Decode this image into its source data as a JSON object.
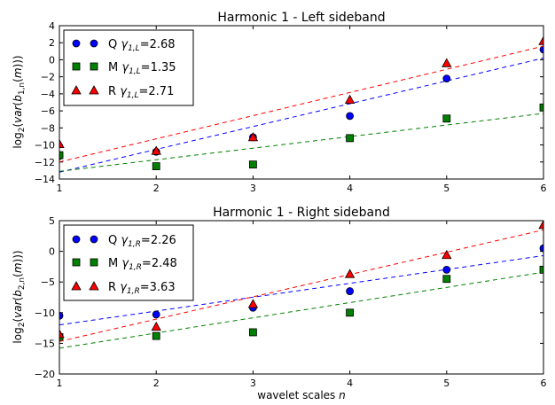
{
  "figure": {
    "xlabel": "wavelet scales n"
  },
  "chart_data": [
    {
      "type": "scatter",
      "title": "Harmonic 1 - Left sideband",
      "xlabel": "",
      "ylabel": "log2(var(b1,n(m)))",
      "xlim": [
        1,
        6
      ],
      "ylim": [
        -14,
        4
      ],
      "x_ticks": [
        1,
        2,
        3,
        4,
        5,
        6
      ],
      "y_ticks": [
        -14,
        -12,
        -10,
        -8,
        -6,
        -4,
        -2,
        0,
        2,
        4
      ],
      "legend_position": "top-left",
      "x": [
        1,
        2,
        3,
        4,
        5,
        6
      ],
      "series": [
        {
          "name": "Q",
          "gamma_sub": "1,L",
          "gamma": "2.68",
          "color": "#0000ff",
          "marker": "circle",
          "values": [
            -11.3,
            -10.8,
            -9.1,
            -6.6,
            -2.2,
            1.2
          ],
          "fit": {
            "x": [
              1,
              6
            ],
            "y": [
              -13.2,
              0.2
            ]
          }
        },
        {
          "name": "M",
          "gamma_sub": "1,L",
          "gamma": "1.35",
          "color": "#008000",
          "marker": "square",
          "values": [
            -11.2,
            -12.5,
            -12.3,
            -9.2,
            -6.9,
            -5.6
          ],
          "fit": {
            "x": [
              1,
              6
            ],
            "y": [
              -13.1,
              -6.3
            ]
          }
        },
        {
          "name": "R",
          "gamma_sub": "1,L",
          "gamma": "2.71",
          "color": "#ff0000",
          "marker": "triangle",
          "values": [
            -9.9,
            -10.7,
            -9.1,
            -4.7,
            -0.4,
            2.2
          ],
          "fit": {
            "x": [
              1,
              6
            ],
            "y": [
              -12.0,
              1.6
            ]
          }
        }
      ]
    },
    {
      "type": "scatter",
      "title": "Harmonic 1 - Right sideband",
      "xlabel": "wavelet scales n",
      "ylabel": "log2(var(b2,n(m)))",
      "xlim": [
        1,
        6
      ],
      "ylim": [
        -20,
        5
      ],
      "x_ticks": [
        1,
        2,
        3,
        4,
        5,
        6
      ],
      "y_ticks": [
        -20,
        -15,
        -10,
        -5,
        0,
        5
      ],
      "legend_position": "top-left",
      "x": [
        1,
        2,
        3,
        4,
        5,
        6
      ],
      "series": [
        {
          "name": "Q",
          "gamma_sub": "1,R",
          "gamma": "2.26",
          "color": "#0000ff",
          "marker": "circle",
          "values": [
            -10.5,
            -10.3,
            -9.2,
            -6.5,
            -3.0,
            0.5
          ],
          "fit": {
            "x": [
              1,
              6
            ],
            "y": [
              -12.0,
              -0.7
            ]
          }
        },
        {
          "name": "M",
          "gamma_sub": "1,R",
          "gamma": "2.48",
          "color": "#008000",
          "marker": "square",
          "values": [
            -14.0,
            -13.8,
            -13.2,
            -10.0,
            -4.5,
            -3.0
          ],
          "fit": {
            "x": [
              1,
              6
            ],
            "y": [
              -15.8,
              -3.4
            ]
          }
        },
        {
          "name": "R",
          "gamma_sub": "1,R",
          "gamma": "3.63",
          "color": "#ff0000",
          "marker": "triangle",
          "values": [
            -13.5,
            -12.3,
            -8.6,
            -3.7,
            -0.6,
            4.3
          ],
          "fit": {
            "x": [
              1,
              6
            ],
            "y": [
              -14.7,
              3.5
            ]
          }
        }
      ]
    }
  ]
}
